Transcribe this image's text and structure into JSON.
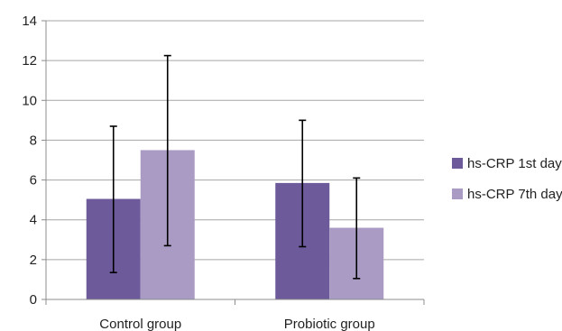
{
  "chart_data": {
    "type": "bar",
    "categories": [
      "Control group",
      "Probiotic group"
    ],
    "series": [
      {
        "name": "hs-CRP 1st day",
        "values": [
          5.05,
          5.85
        ],
        "error_low": [
          1.35,
          2.65
        ],
        "error_high": [
          8.7,
          9.0
        ],
        "color": "#6d5a9b"
      },
      {
        "name": "hs-CRP 7th day",
        "values": [
          7.5,
          3.6
        ],
        "error_low": [
          2.7,
          1.05
        ],
        "error_high": [
          12.25,
          6.1
        ],
        "color": "#a99bc3"
      }
    ],
    "ylim": [
      0,
      14
    ],
    "yticks": [
      0,
      2,
      4,
      6,
      8,
      10,
      12,
      14
    ],
    "grid": true,
    "legend_position": "right"
  }
}
